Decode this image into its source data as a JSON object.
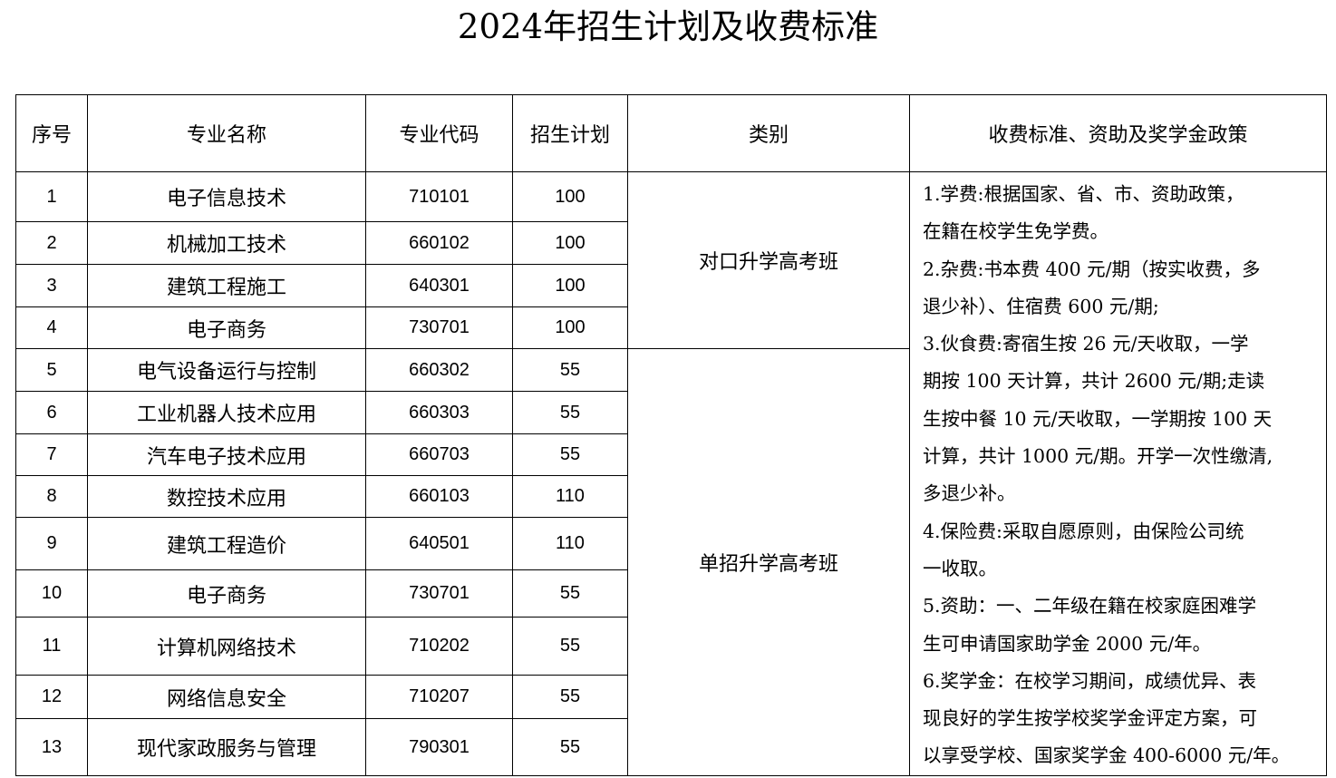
{
  "title": "2024年招生计划及收费标准",
  "headers": [
    "序号",
    "专业名称",
    "专业代码",
    "招生计划",
    "类别",
    "收费标准、资助及奖学金政策"
  ],
  "rows": [
    {
      "no": "1",
      "name": "电子信息技术",
      "code": "710101",
      "plan": "100"
    },
    {
      "no": "2",
      "name": "机械加工技术",
      "code": "660102",
      "plan": "100"
    },
    {
      "no": "3",
      "name": "建筑工程施工",
      "code": "640301",
      "plan": "100"
    },
    {
      "no": "4",
      "name": "电子商务",
      "code": "730701",
      "plan": "100"
    },
    {
      "no": "5",
      "name": "电气设备运行与控制",
      "code": "660302",
      "plan": "55"
    },
    {
      "no": "6",
      "name": "工业机器人技术应用",
      "code": "660303",
      "plan": "55"
    },
    {
      "no": "7",
      "name": "汽车电子技术应用",
      "code": "660703",
      "plan": "55"
    },
    {
      "no": "8",
      "name": "数控技术应用",
      "code": "660103",
      "plan": "110"
    },
    {
      "no": "9",
      "name": "建筑工程造价",
      "code": "640501",
      "plan": "110"
    },
    {
      "no": "10",
      "name": "电子商务",
      "code": "730701",
      "plan": "55"
    },
    {
      "no": "11",
      "name": "计算机网络技术",
      "code": "710202",
      "plan": "55"
    },
    {
      "no": "12",
      "name": "网络信息安全",
      "code": "710207",
      "plan": "55"
    },
    {
      "no": "13",
      "name": "现代家政服务与管理",
      "code": "790301",
      "plan": "55"
    }
  ],
  "categories": [
    "对口升学高考班",
    "单招升学高考班"
  ],
  "fee_lines": [
    "1.学费:根据国家、省、市、资助政策，",
    "在籍在校学生免学费。",
    "2.杂费:书本费 400 元/期（按实收费，多",
    "退少补）、住宿费 600 元/期;",
    "3.伙食费:寄宿生按 26 元/天收取，一学",
    "期按 100 天计算，共计 2600 元/期;走读",
    "生按中餐 10 元/天收取，一学期按 100 天",
    "计算，共计 1000 元/期。开学一次性缴清,",
    "多退少补。",
    "4.保险费:采取自愿原则，由保险公司统",
    "一收取。",
    "5.资助：一、二年级在籍在校家庭困难学",
    "生可申请国家助学金 2000 元/年。",
    "6.奖学金：在校学习期间，成绩优异、表",
    "现良好的学生按学校奖学金评定方案，可",
    "以享受学校、国家奖学金 400-6000 元/年。"
  ]
}
